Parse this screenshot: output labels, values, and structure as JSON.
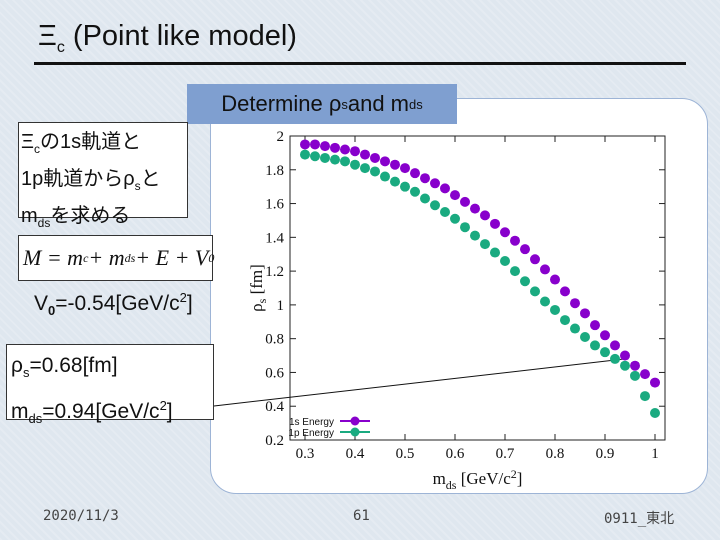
{
  "slide": {
    "title_main": "Ξ",
    "title_sub": "c",
    "title_rest": " (Point like model)",
    "determine_a": "Determine ρ",
    "determine_a_sub": "s",
    "determine_b": " and m",
    "determine_b_sub": "ds",
    "jp_line1_a": "Ξ",
    "jp_line1_sub": "c",
    "jp_line1_b": "の1s軌道と",
    "jp_line2_a": "1p軌道からρ",
    "jp_line2_sub": "s",
    "jp_line2_b": "と",
    "jp_line3_a": "m",
    "jp_line3_sub": "ds",
    "jp_line3_b": "を求める",
    "eq_M": "M = m",
    "eq_c": "c",
    "eq_plus_m": " + m",
    "eq_ds": "ds",
    "eq_plus_E": " + E + V",
    "eq_0": "0",
    "v0_a": "V",
    "v0_sub": "0",
    "v0_b": "=-0.54[GeV/c",
    "v0_sup": "2",
    "v0_c": "]",
    "res1_a": "ρ",
    "res1_sub": "s",
    "res1_b": "=0.68[fm]",
    "res2_a": "m",
    "res2_sub": "ds",
    "res2_b": "=0.94[GeV/c",
    "res2_sup": "2",
    "res2_c": "]",
    "date": "2020/11/3",
    "page": "61",
    "code": "0911_東北"
  },
  "chart_data": {
    "type": "scatter",
    "x": [
      0.3,
      0.32,
      0.34,
      0.36,
      0.38,
      0.4,
      0.42,
      0.44,
      0.46,
      0.48,
      0.5,
      0.52,
      0.54,
      0.56,
      0.58,
      0.6,
      0.62,
      0.64,
      0.66,
      0.68,
      0.7,
      0.72,
      0.74,
      0.76,
      0.78,
      0.8,
      0.82,
      0.84,
      0.86,
      0.88,
      0.9,
      0.92,
      0.94,
      0.96,
      0.98,
      1.0
    ],
    "series": [
      {
        "name": "1s Energy",
        "color": "#8800cc",
        "values": [
          1.95,
          1.95,
          1.94,
          1.93,
          1.92,
          1.91,
          1.89,
          1.87,
          1.85,
          1.83,
          1.81,
          1.78,
          1.75,
          1.72,
          1.69,
          1.65,
          1.61,
          1.57,
          1.53,
          1.48,
          1.43,
          1.38,
          1.33,
          1.27,
          1.21,
          1.15,
          1.08,
          1.01,
          0.95,
          0.88,
          0.82,
          0.76,
          0.7,
          0.64,
          0.59,
          0.54
        ]
      },
      {
        "name": "1p Energy",
        "color": "#1aaa80",
        "values": [
          1.89,
          1.88,
          1.87,
          1.86,
          1.85,
          1.83,
          1.81,
          1.79,
          1.76,
          1.73,
          1.7,
          1.67,
          1.63,
          1.59,
          1.55,
          1.51,
          1.46,
          1.41,
          1.36,
          1.31,
          1.26,
          1.2,
          1.14,
          1.08,
          1.02,
          0.97,
          0.91,
          0.86,
          0.81,
          0.76,
          0.72,
          0.68,
          0.64,
          0.58,
          0.46,
          0.36
        ]
      }
    ],
    "xlabel_a": "m",
    "xlabel_sub": "ds",
    "xlabel_b": " [GeV/c",
    "xlabel_sup": "2",
    "xlabel_c": "]",
    "ylabel_a": "ρ",
    "ylabel_sub": "s",
    "ylabel_b": " [fm]",
    "xlim": [
      0.27,
      1.02
    ],
    "ylim": [
      0.2,
      2.0
    ],
    "xticks": [
      "0.3",
      "0.4",
      "0.5",
      "0.6",
      "0.7",
      "0.8",
      "0.9",
      "1"
    ],
    "yticks": [
      "0.2",
      "0.4",
      "0.6",
      "0.8",
      "1",
      "1.2",
      "1.4",
      "1.6",
      "1.8",
      "2"
    ],
    "legend_position": "bottom-left",
    "grid": false,
    "annotation_point": {
      "x": 0.94,
      "y": 0.68
    }
  }
}
